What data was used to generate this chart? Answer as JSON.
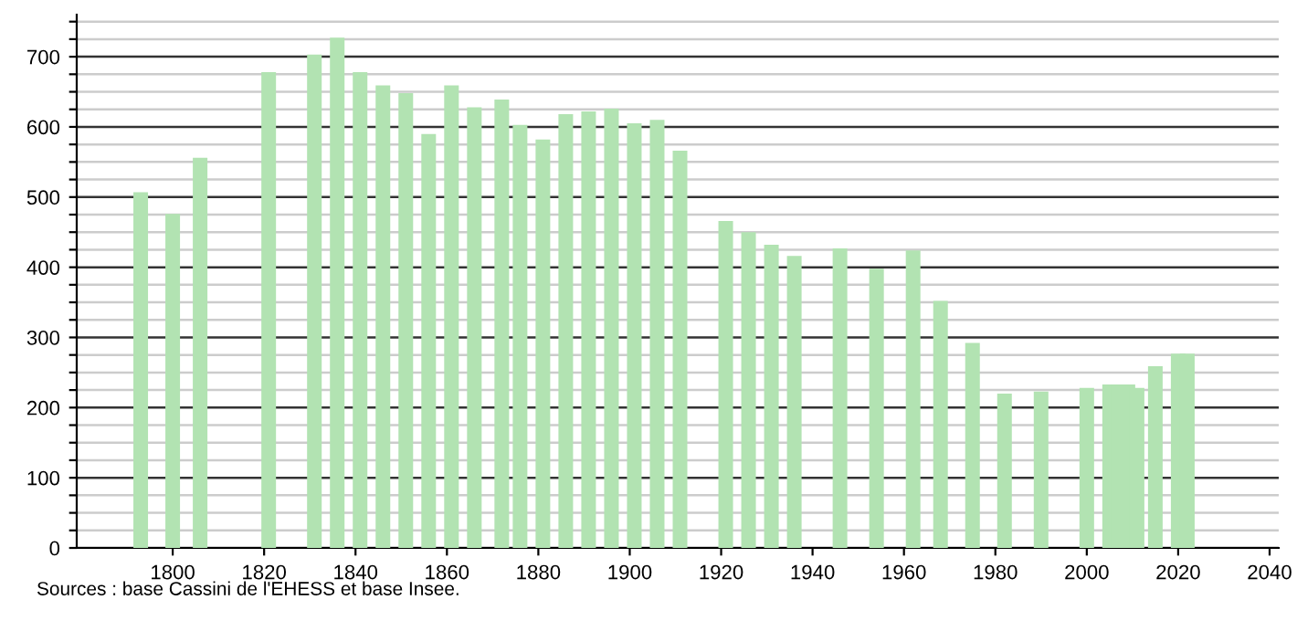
{
  "chart_data": {
    "type": "bar",
    "color": "#b2e3b2",
    "x": [
      1793,
      1800,
      1806,
      1821,
      1831,
      1836,
      1841,
      1846,
      1851,
      1856,
      1861,
      1866,
      1872,
      1876,
      1881,
      1886,
      1891,
      1896,
      1901,
      1906,
      1911,
      1921,
      1926,
      1931,
      1936,
      1946,
      1954,
      1962,
      1968,
      1975,
      1982,
      1990,
      2000,
      2005,
      2007,
      2009,
      2011,
      2015,
      2020,
      2022
    ],
    "values": [
      507,
      476,
      556,
      678,
      703,
      727,
      678,
      659,
      648,
      590,
      659,
      628,
      639,
      603,
      582,
      618,
      622,
      626,
      605,
      610,
      566,
      466,
      450,
      432,
      416,
      427,
      398,
      424,
      352,
      292,
      220,
      223,
      228,
      233,
      233,
      233,
      228,
      259,
      277,
      277
    ],
    "xlim": [
      1779,
      2042
    ],
    "xticks": [
      1800,
      1820,
      1840,
      1860,
      1880,
      1900,
      1920,
      1940,
      1960,
      1980,
      2000,
      2020,
      2040
    ],
    "ylim": [
      0,
      760
    ],
    "yticks": [
      0,
      {
        "value": 25,
        "label": null
      },
      {
        "value": 50,
        "label": null
      },
      {
        "value": 75,
        "label": null
      },
      100,
      {
        "value": 125,
        "label": null
      },
      {
        "value": 150,
        "label": null
      },
      {
        "value": 175,
        "label": null
      },
      200,
      {
        "value": 225,
        "label": null
      },
      {
        "value": 250,
        "label": null
      },
      {
        "value": 275,
        "label": null
      },
      300,
      {
        "value": 325,
        "label": null
      },
      {
        "value": 350,
        "label": null
      },
      {
        "value": 375,
        "label": null
      },
      400,
      {
        "value": 425,
        "label": null
      },
      {
        "value": 450,
        "label": null
      },
      {
        "value": 475,
        "label": null
      },
      500,
      {
        "value": 525,
        "label": null
      },
      {
        "value": 550,
        "label": null
      },
      {
        "value": 575,
        "label": null
      },
      600,
      {
        "value": 625,
        "label": null
      },
      {
        "value": 650,
        "label": null
      },
      {
        "value": 675,
        "label": null
      },
      700,
      {
        "value": 725,
        "label": null
      },
      {
        "value": 750,
        "label": null
      }
    ],
    "grid": "y",
    "annotations": [
      "Sources : base Cassini de l'EHESS et base Insee."
    ]
  }
}
